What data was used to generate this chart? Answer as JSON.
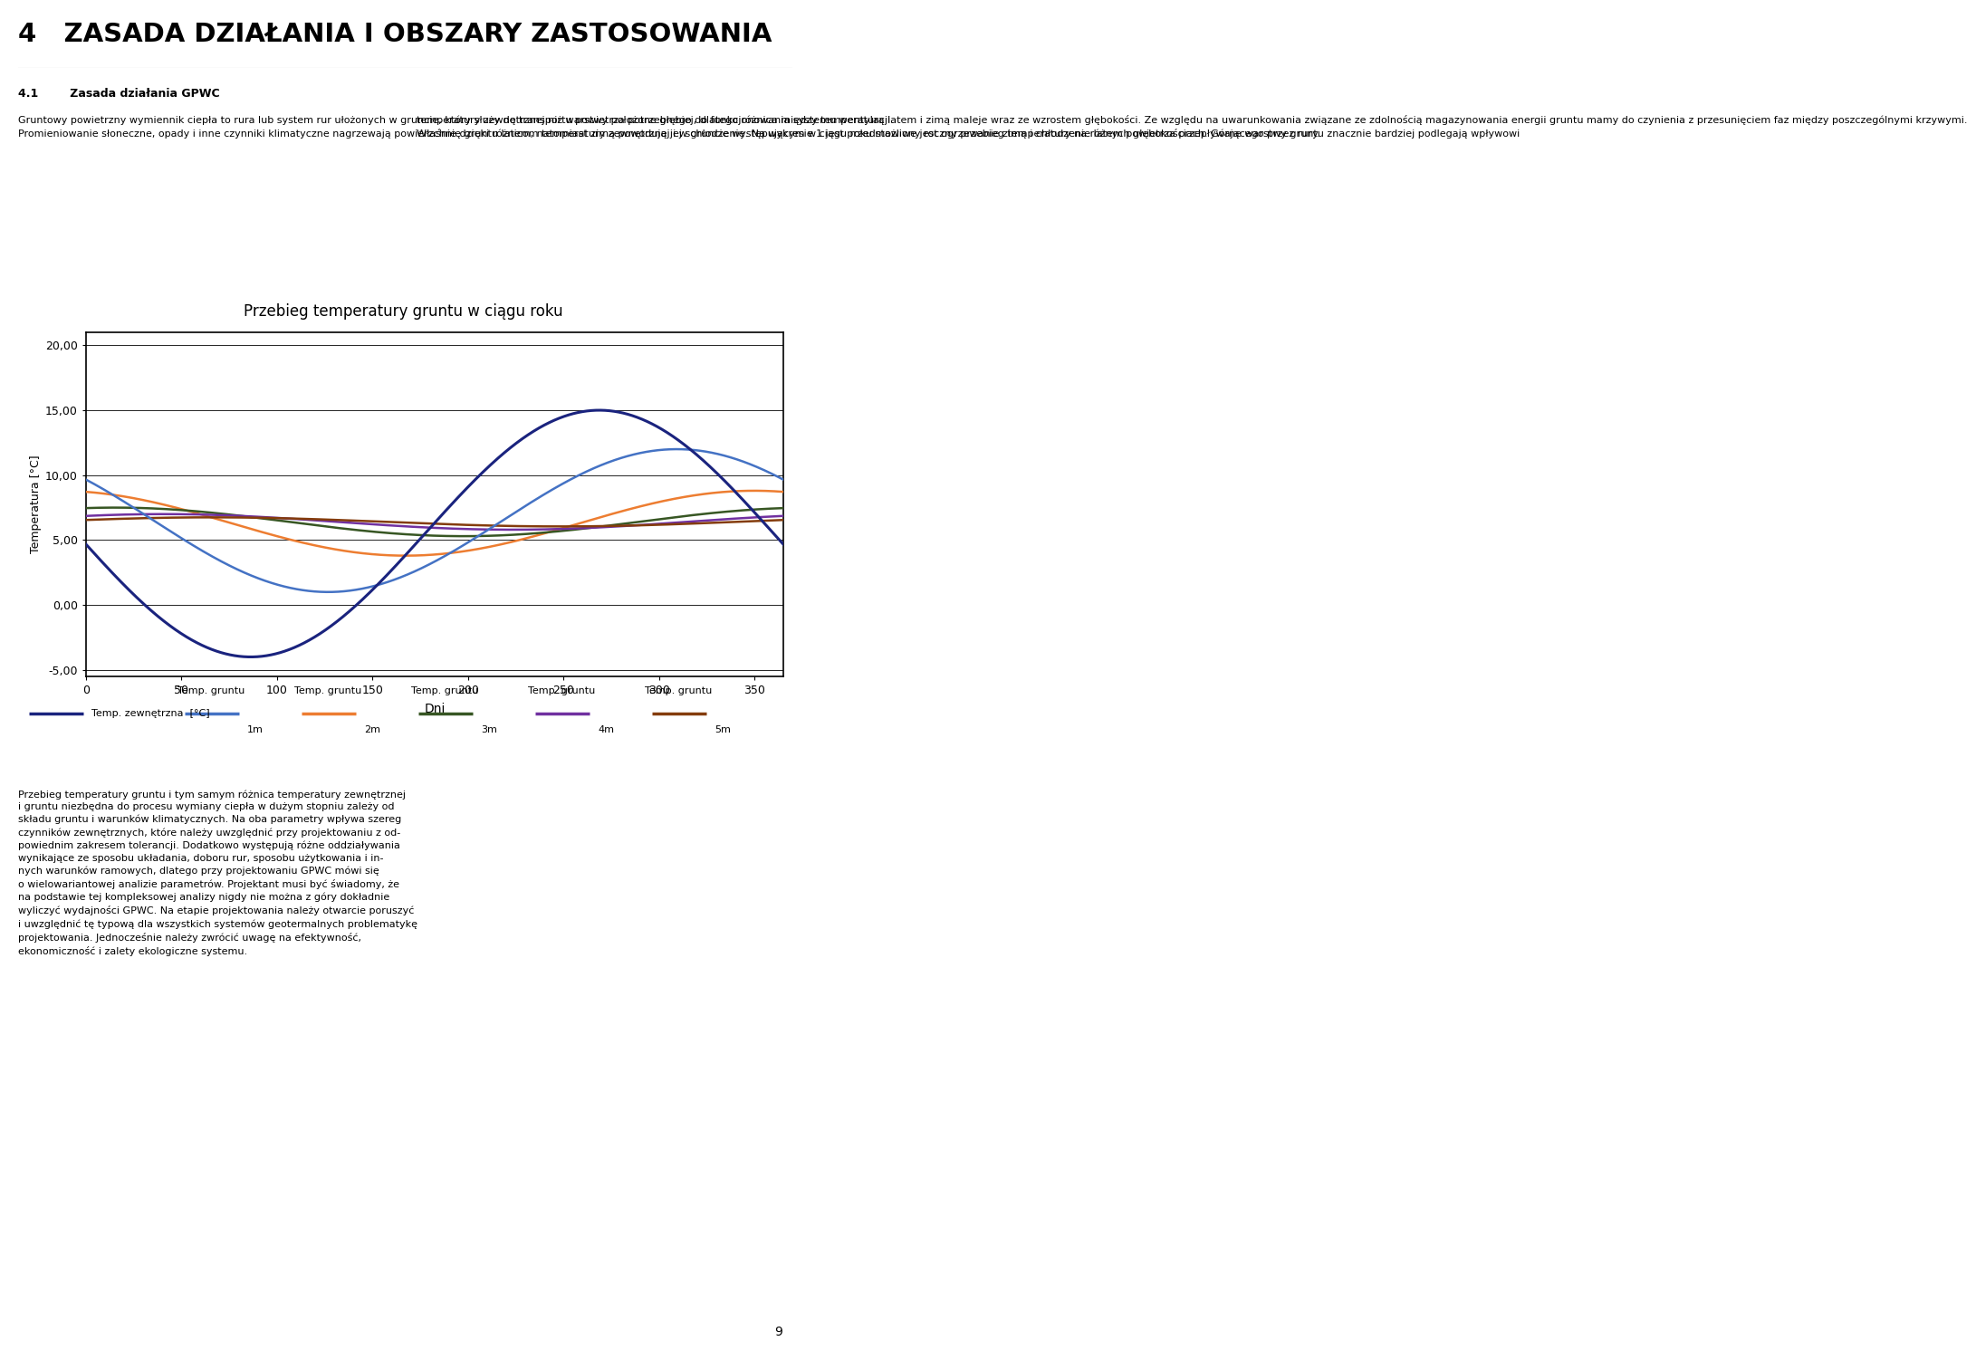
{
  "title": "4   ZASADA DZIAŁANIA I OBSZARY ZASTOSOWANIA",
  "section_title": "4.1        Zasada działania GPWC",
  "col1_para1": "Gruntowy powietrzny wymiennik ciepła to rura lub system rur ułożonych w gruncie, który służy do transportu powietrza potrzebnego do funkcjonowania systemu wentylacji.",
  "col1_para2": "Promieniowanie słoneczne, opady i inne czynniki klimatyczne nagrzewają powierzchnię gruntu latem, natomiast zimą powodują jej schłodzenie. Na wykresie 1 jest przedstawiony roczny przebieg temperatury na różnych głębokościach. Górne warstwy gruntu znacznie bardziej podlegają wpływowi",
  "col2_para1": "temperatury zewnętrznej niż warstwy położone głębiej, dlatego różnica między temperaturą latem i zimą maleje wraz ze wzrostem głębokości. Ze względu na uwarunkowania związane ze zdolnością magazynowania energii gruntu mamy do czynienia z przesunięciem faz między poszczególnymi krzywymi.",
  "col2_para2": "Właśnie dzięki różnicom temperatury zewnętrznej i w gruncie występującym w ciągu roku możliwe jest ogrzewanie zimą i chłodzenie latem powietrza przepływającego przez rury.",
  "chart_title": "Przebieg temperatury gruntu w ciągu roku",
  "ylabel": "Temperatura [°C]",
  "xlabel": "Dni",
  "ylim": [
    -5.5,
    21.0
  ],
  "yticks": [
    -5.0,
    0.0,
    5.0,
    10.0,
    15.0,
    20.0
  ],
  "ytick_labels": [
    "-5,00",
    "0,00",
    "5,00",
    "10,00",
    "15,00",
    "20,00"
  ],
  "xlim": [
    0,
    365
  ],
  "xticks": [
    0,
    50,
    100,
    150,
    200,
    250,
    300,
    350
  ],
  "series": {
    "temp_zewnetrzna": {
      "color": "#1a237e",
      "label": "Temp. zewnętrzna  [°C]",
      "amplitude": 9.5,
      "mean": 5.5,
      "phase_deg": 175,
      "linewidth": 2.2
    },
    "temp_1m": {
      "color": "#4472c4",
      "label": "1m",
      "amplitude": 5.5,
      "mean": 6.5,
      "phase_deg": 215,
      "linewidth": 1.8
    },
    "temp_2m": {
      "color": "#ed7d31",
      "label": "2m",
      "amplitude": 2.5,
      "mean": 6.3,
      "phase_deg": 255,
      "linewidth": 1.8
    },
    "temp_3m": {
      "color": "#375623",
      "label": "3m",
      "amplitude": 1.1,
      "mean": 6.4,
      "phase_deg": 285,
      "linewidth": 1.8
    },
    "temp_4m": {
      "color": "#7030a0",
      "label": "4m",
      "amplitude": 0.6,
      "mean": 6.4,
      "phase_deg": 310,
      "linewidth": 1.8
    },
    "temp_5m": {
      "color": "#843c0c",
      "label": "5m",
      "amplitude": 0.35,
      "mean": 6.4,
      "phase_deg": 335,
      "linewidth": 1.8
    }
  },
  "legend_items": [
    {
      "color": "#1a237e",
      "line_label": "Temp. zewnętrzna  [°C]",
      "top_label": "",
      "bottom_label": ""
    },
    {
      "color": "#4472c4",
      "line_label": "",
      "top_label": "Temp. gruntu",
      "bottom_label": "1m"
    },
    {
      "color": "#ed7d31",
      "line_label": "",
      "top_label": "Temp. gruntu",
      "bottom_label": "2m"
    },
    {
      "color": "#375623",
      "line_label": "",
      "top_label": "Temp. gruntu",
      "bottom_label": "3m"
    },
    {
      "color": "#7030a0",
      "line_label": "",
      "top_label": "Temp. gruntu",
      "bottom_label": "4m"
    },
    {
      "color": "#843c0c",
      "line_label": "",
      "top_label": "Temp. gruntu",
      "bottom_label": "5m"
    }
  ],
  "bottom_text_lines": [
    "Przebieg temperatury gruntu i tym samym różnica temperatury zewnętrznej",
    "i gruntu niezbędna do procesu wymiany ciepła w dużym stopniu zależy od",
    "składu gruntu i warunków klimatycznych. Na oba parametry wpływa szereg",
    "czynników zewnętrznych, które należy uwzględnić przy projektowaniu z od-",
    "powiednim zakresem tolerancji. Dodatkowo występują różne oddziaływania",
    "wynikające ze sposobu układania, doboru rur, sposobu użytkowania i in-",
    "nych warunków ramowych, dlatego przy projektowaniu GPWC mówi się",
    "o wielowariantowej analizie parametrów. Projektant musi być świadomy, że",
    "na podstawie tej kompleksowej analizy nigdy nie można z góry dokładnie",
    "wyliczyć wydajności GPWC. Na etapie projektowania należy otwarcie poruszyć",
    "i uwzględnić tę typową dla wszystkich systemów geotermalnych problematykę",
    "projektowania. Jednocześnie należy zwrócić uwagę na efektywność,",
    "ekonomiczność i zalety ekologiczne systemu."
  ],
  "page_number": "9",
  "bg_color": "#ffffff"
}
